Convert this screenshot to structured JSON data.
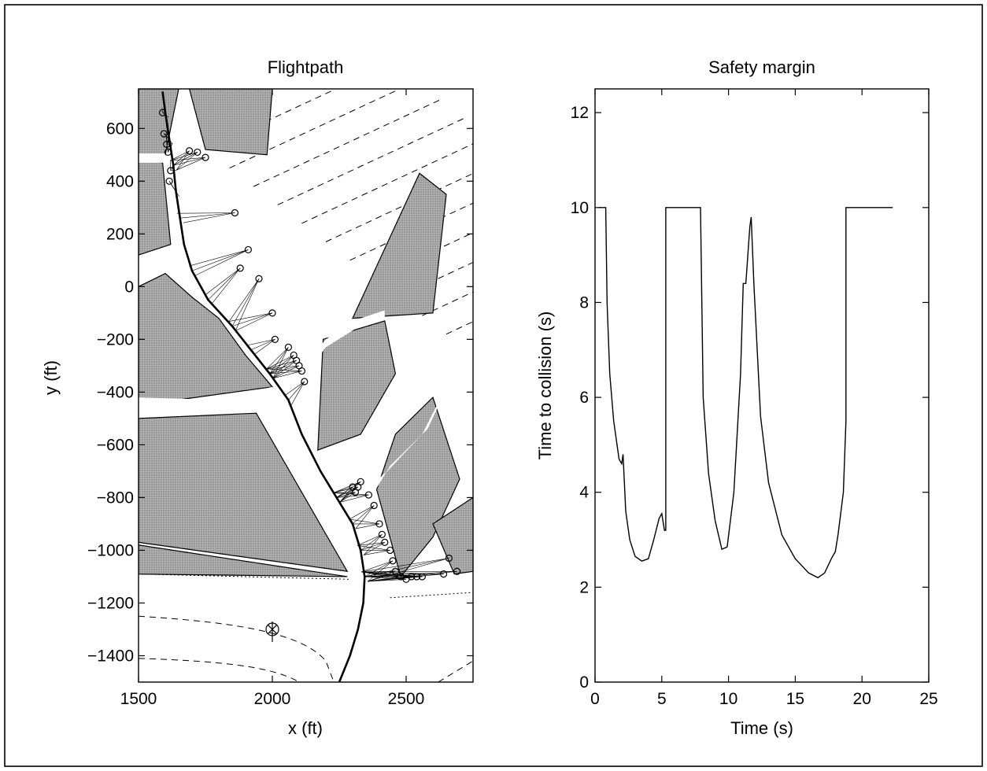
{
  "chart_data": [
    {
      "type": "line",
      "title": "Flightpath",
      "xlabel": "x (ft)",
      "ylabel": "y (ft)",
      "xlim": [
        1500,
        2750
      ],
      "ylim": [
        -1500,
        750
      ],
      "xticks": [
        "1500",
        "2000",
        "2500"
      ],
      "yticks": [
        "600",
        "400",
        "200",
        "0",
        "−200",
        "−400",
        "−600",
        "−800",
        "−1000",
        "−1200",
        "−1400"
      ],
      "grid": false,
      "series": [
        {
          "x": [
            2250,
            2290,
            2320,
            2340,
            2345,
            2330,
            2300,
            2240,
            2180,
            2110,
            2060,
            1990,
            1920,
            1850,
            1760,
            1700,
            1670,
            1655,
            1640,
            1630,
            1615,
            1600,
            1590
          ],
          "y": [
            -1500,
            -1400,
            -1300,
            -1200,
            -1100,
            -1000,
            -900,
            -800,
            -700,
            -560,
            -430,
            -330,
            -240,
            -150,
            -50,
            60,
            160,
            260,
            360,
            460,
            560,
            660,
            740
          ]
        }
      ],
      "obstacle_points": {
        "x": [
          1590,
          1595,
          1605,
          1610,
          1620,
          1615,
          1690,
          1720,
          1750,
          1860,
          1880,
          1910,
          1950,
          2000,
          2010,
          2060,
          2080,
          2090,
          2100,
          2110,
          2120,
          2300,
          2310,
          2320,
          2330,
          2360,
          2380,
          2400,
          2410,
          2420,
          2440,
          2450,
          2460,
          2480,
          2500,
          2520,
          2540,
          2560,
          2640,
          2660,
          2690
        ],
        "y": [
          660,
          580,
          540,
          510,
          440,
          400,
          515,
          510,
          490,
          280,
          70,
          140,
          30,
          -100,
          -200,
          -230,
          -260,
          -280,
          -300,
          -320,
          -360,
          -760,
          -780,
          -760,
          -740,
          -790,
          -830,
          -900,
          -940,
          -970,
          -1000,
          -1040,
          -1080,
          -1100,
          -1110,
          -1100,
          -1100,
          -1100,
          -1090,
          -1030,
          -1080
        ]
      },
      "target": {
        "x": 2000,
        "y": -1300
      },
      "obstacle_polygons": [
        [
          [
            1500,
            750
          ],
          [
            1650,
            750
          ],
          [
            1600,
            500
          ],
          [
            1500,
            500
          ]
        ],
        [
          [
            1690,
            750
          ],
          [
            2000,
            750
          ],
          [
            1980,
            500
          ],
          [
            1750,
            520
          ]
        ],
        [
          [
            1500,
            480
          ],
          [
            1590,
            470
          ],
          [
            1620,
            160
          ],
          [
            1500,
            120
          ]
        ],
        [
          [
            1500,
            0
          ],
          [
            1600,
            50
          ],
          [
            1700,
            -40
          ],
          [
            1800,
            -120
          ],
          [
            1900,
            -260
          ],
          [
            2000,
            -380
          ],
          [
            1500,
            -450
          ]
        ],
        [
          [
            1500,
            -500
          ],
          [
            1940,
            -480
          ],
          [
            2280,
            -1080
          ],
          [
            1500,
            -970
          ]
        ],
        [
          [
            1500,
            -980
          ],
          [
            2280,
            -1100
          ],
          [
            1500,
            -1090
          ]
        ],
        [
          [
            2190,
            -200
          ],
          [
            2420,
            -130
          ],
          [
            2460,
            -330
          ],
          [
            2330,
            -560
          ],
          [
            2170,
            -620
          ]
        ],
        [
          [
            2300,
            -120
          ],
          [
            2550,
            430
          ],
          [
            2650,
            350
          ],
          [
            2600,
            -100
          ]
        ],
        [
          [
            2390,
            -770
          ],
          [
            2480,
            -1100
          ],
          [
            2600,
            -950
          ],
          [
            2700,
            -730
          ],
          [
            2600,
            -420
          ],
          [
            2460,
            -560
          ]
        ],
        [
          [
            2600,
            -900
          ],
          [
            2750,
            -800
          ],
          [
            2750,
            -1080
          ],
          [
            2680,
            -1090
          ]
        ]
      ]
    },
    {
      "type": "line",
      "title": "Safety  margin",
      "xlabel": "Time (s)",
      "ylabel": "Time to collision (s)",
      "xlim": [
        0,
        25
      ],
      "ylim": [
        0,
        12.5
      ],
      "xticks": [
        "0",
        "5",
        "10",
        "15",
        "20",
        "25"
      ],
      "yticks": [
        "0",
        "2",
        "4",
        "6",
        "8",
        "10",
        "12"
      ],
      "grid": false,
      "series": [
        {
          "x": [
            0.3,
            0.8,
            0.9,
            1.1,
            1.4,
            1.8,
            2.0,
            2.1,
            2.3,
            2.6,
            3.0,
            3.5,
            4.0,
            4.4,
            4.8,
            5.0,
            5.2,
            5.3,
            5.3,
            7.9,
            8.1,
            8.5,
            9.0,
            9.5,
            9.9,
            10.4,
            10.9,
            11.1,
            11.3,
            11.6,
            11.7,
            11.9,
            12.4,
            13.0,
            14.0,
            15.0,
            16.0,
            16.7,
            17.2,
            17.7,
            18.0,
            18.2,
            18.6,
            18.8,
            18.8,
            22.3
          ],
          "y": [
            10.0,
            10.0,
            8.0,
            6.5,
            5.5,
            4.7,
            4.6,
            4.8,
            3.6,
            3.0,
            2.65,
            2.55,
            2.6,
            3.0,
            3.45,
            3.55,
            3.2,
            3.2,
            10.0,
            10.0,
            6.0,
            4.4,
            3.4,
            2.8,
            2.85,
            4.0,
            6.5,
            8.4,
            8.4,
            9.6,
            9.8,
            8.4,
            5.6,
            4.2,
            3.1,
            2.6,
            2.3,
            2.2,
            2.3,
            2.6,
            2.75,
            3.1,
            4.0,
            5.5,
            10.0,
            10.0
          ]
        }
      ]
    }
  ]
}
